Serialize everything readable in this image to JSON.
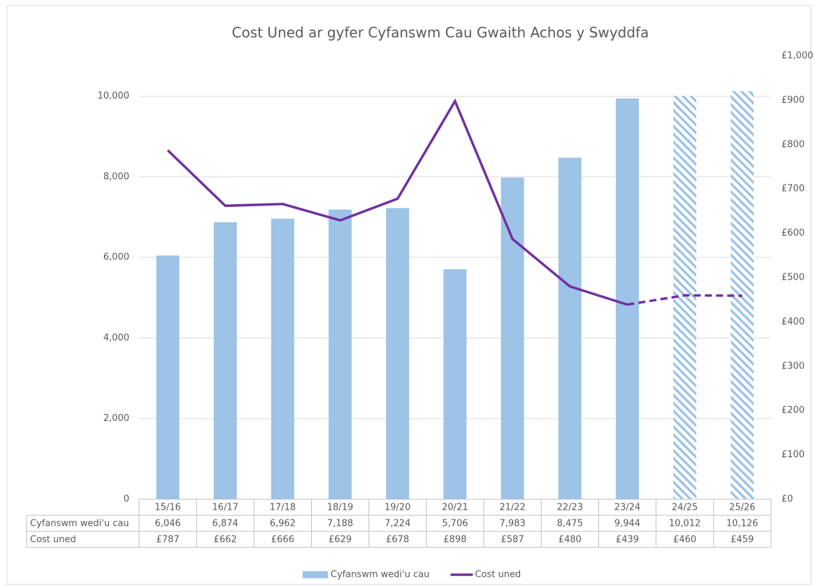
{
  "chart_data": {
    "type": "bar-line",
    "title": "Cost Uned ar gyfer Cyfanswm Cau Gwaith Achos y Swyddfa",
    "categories": [
      "15/16",
      "16/17",
      "17/18",
      "18/19",
      "19/20",
      "20/21",
      "21/22",
      "22/23",
      "23/24",
      "24/25",
      "25/26"
    ],
    "projected": [
      false,
      false,
      false,
      false,
      false,
      false,
      false,
      false,
      false,
      true,
      true
    ],
    "series": [
      {
        "name": "Cyfanswm wedi'u cau",
        "type": "bar",
        "color": "#9dc3e6",
        "values": [
          6046,
          6874,
          6962,
          7188,
          7224,
          5706,
          7983,
          8475,
          9944,
          10012,
          10126
        ],
        "value_labels": [
          "6,046",
          "6,874",
          "6,962",
          "7,188",
          "7,224",
          "5,706",
          "7,983",
          "8,475",
          "9,944",
          "10,012",
          "10,126"
        ]
      },
      {
        "name": "Cost uned",
        "type": "line",
        "color": "#7030a0",
        "axis": "y2",
        "values": [
          787,
          662,
          666,
          629,
          678,
          898,
          587,
          480,
          439,
          460,
          459
        ],
        "value_labels": [
          "£787",
          "£662",
          "£666",
          "£629",
          "£678",
          "£898",
          "£587",
          "£480",
          "£439",
          "£460",
          "£459"
        ]
      }
    ],
    "ylim": [
      0,
      11000
    ],
    "yticks": [
      0,
      {
        "value": 2000,
        "label": "2,000"
      },
      {
        "value": 4000,
        "label": "4,000"
      },
      {
        "value": 6000,
        "label": "6,000"
      },
      {
        "value": 8000,
        "label": "8,000"
      },
      {
        "value": 10000,
        "label": "10,000"
      }
    ],
    "y2lim": [
      0,
      1000
    ],
    "y2ticks": [
      {
        "value": 0,
        "label": "£0"
      },
      {
        "value": 100,
        "label": "£100"
      },
      {
        "value": 200,
        "label": "£200"
      },
      {
        "value": 300,
        "label": "£300"
      },
      {
        "value": 400,
        "label": "£400"
      },
      {
        "value": 500,
        "label": "£500"
      },
      {
        "value": 600,
        "label": "£600"
      },
      {
        "value": 700,
        "label": "£700"
      },
      {
        "value": 800,
        "label": "£800"
      },
      {
        "value": 900,
        "label": "£900"
      },
      {
        "value": 1000,
        "label": "£1,000"
      }
    ],
    "grid": true,
    "legend": "bottom"
  }
}
